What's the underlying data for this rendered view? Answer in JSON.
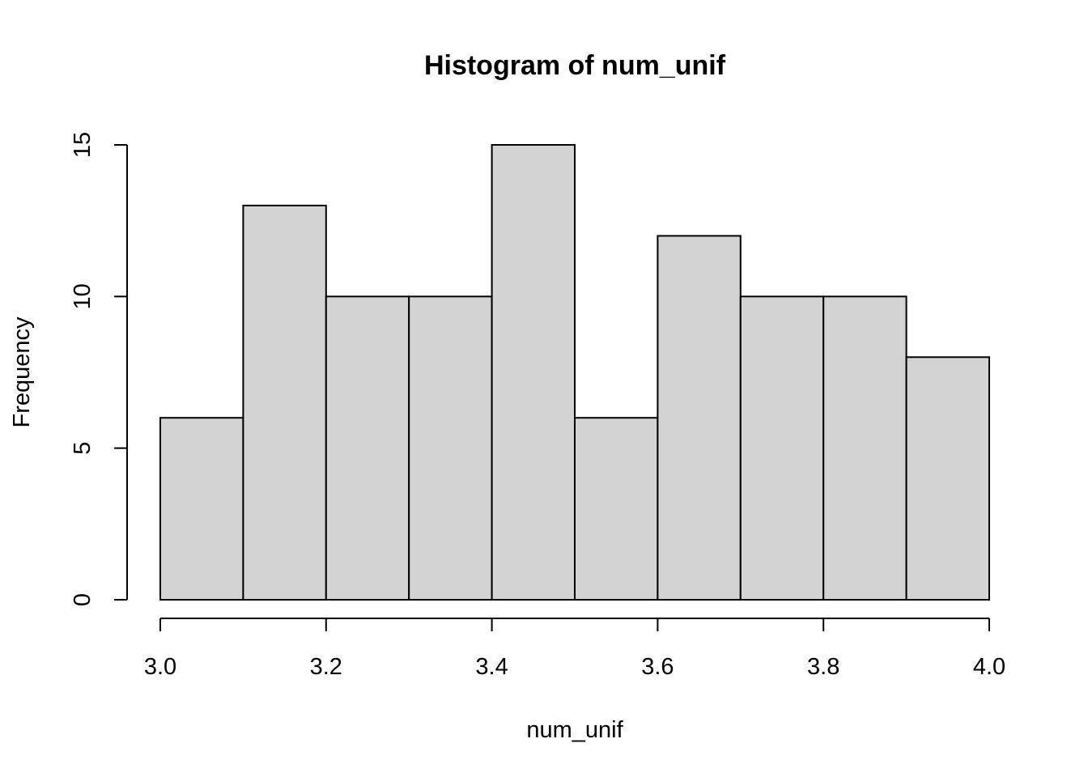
{
  "chart_data": {
    "type": "bar",
    "title": "Histogram of num_unif",
    "xlabel": "num_unif",
    "ylabel": "Frequency",
    "bins": [
      {
        "start": 3.0,
        "end": 3.1,
        "count": 6
      },
      {
        "start": 3.1,
        "end": 3.2,
        "count": 13
      },
      {
        "start": 3.2,
        "end": 3.3,
        "count": 10
      },
      {
        "start": 3.3,
        "end": 3.4,
        "count": 10
      },
      {
        "start": 3.4,
        "end": 3.5,
        "count": 15
      },
      {
        "start": 3.5,
        "end": 3.6,
        "count": 6
      },
      {
        "start": 3.6,
        "end": 3.7,
        "count": 12
      },
      {
        "start": 3.7,
        "end": 3.8,
        "count": 10
      },
      {
        "start": 3.8,
        "end": 3.9,
        "count": 10
      },
      {
        "start": 3.9,
        "end": 4.0,
        "count": 8
      }
    ],
    "xlim": [
      3.0,
      4.0
    ],
    "ylim": [
      0,
      15
    ],
    "x_ticks": [
      "3.0",
      "3.2",
      "3.4",
      "3.6",
      "3.8",
      "4.0"
    ],
    "y_ticks": [
      "0",
      "5",
      "10",
      "15"
    ],
    "grid": false,
    "bar_color": "#d3d3d3",
    "edge_color": "#000000"
  }
}
